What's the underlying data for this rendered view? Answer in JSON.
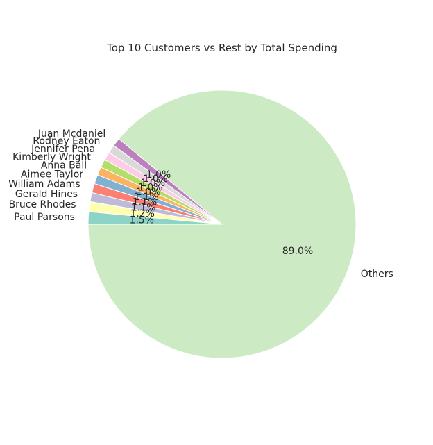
{
  "chart_data": {
    "type": "pie",
    "title": "Top 10 Customers vs Rest by Total Spending",
    "slices": [
      {
        "label": "Paul Parsons",
        "value": 1.5,
        "pct_label": "1.5%",
        "color": "#8dd3c7"
      },
      {
        "label": "Bruce Rhodes",
        "value": 1.2,
        "pct_label": "1.2%",
        "color": "#ffffb3"
      },
      {
        "label": "Gerald Hines",
        "value": 1.1,
        "pct_label": "1.1%",
        "color": "#bebada"
      },
      {
        "label": "William Adams",
        "value": 1.1,
        "pct_label": "1.1%",
        "color": "#fb8072"
      },
      {
        "label": "Aimee Taylor",
        "value": 1.1,
        "pct_label": "1.1%",
        "color": "#80b1d3"
      },
      {
        "label": "Anna Ball",
        "value": 1.0,
        "pct_label": "1.0%",
        "color": "#fdb462"
      },
      {
        "label": "Kimberly Wright",
        "value": 1.0,
        "pct_label": "1.0%",
        "color": "#b3de69"
      },
      {
        "label": "Jennifer Pena",
        "value": 1.0,
        "pct_label": "1.0%",
        "color": "#fccde5"
      },
      {
        "label": "Rodney Eaton",
        "value": 1.0,
        "pct_label": "1.0%",
        "color": "#d9d9d9"
      },
      {
        "label": "Juan Mcdaniel",
        "value": 1.0,
        "pct_label": "1.0%",
        "color": "#bc80bd"
      },
      {
        "label": "Others",
        "value": 89.0,
        "pct_label": "89.0%",
        "color": "#ccebc5"
      }
    ],
    "start_angle_deg": 180,
    "direction": "clockwise",
    "edge_color": "#ffffff"
  }
}
